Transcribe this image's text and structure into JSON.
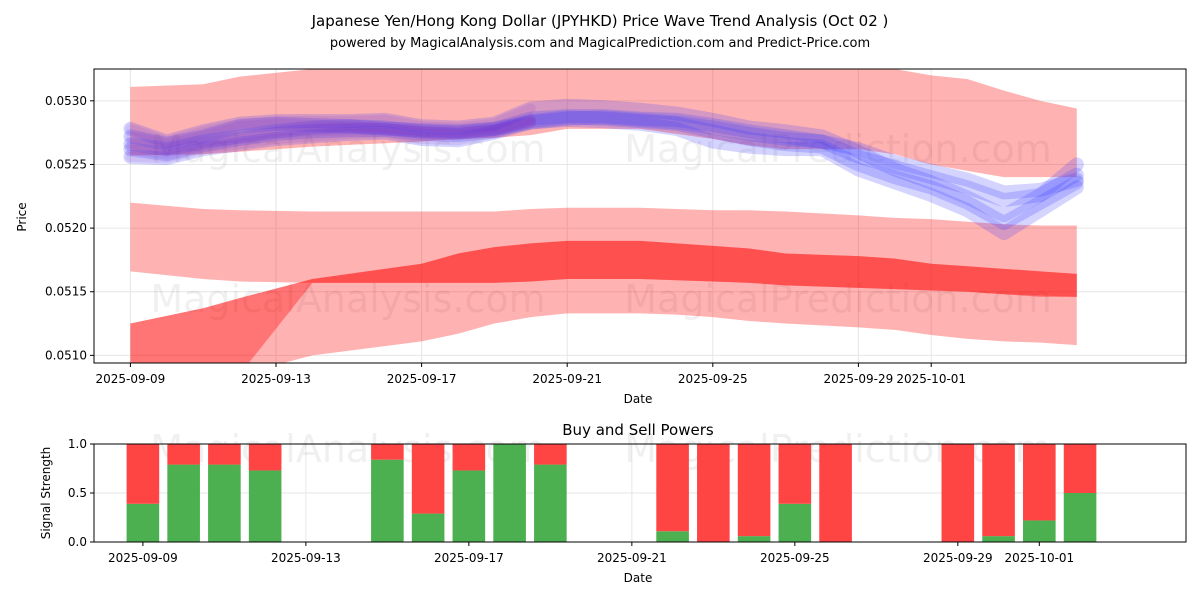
{
  "colors": {
    "band": "#ff0000",
    "wave": "#3a3aff",
    "wave_purple": "#8a2ab8",
    "buy": "#4caf50",
    "sell": "#ff4444",
    "grid": "#e6e6e6"
  },
  "watermarks": [
    "MagicalAnalysis.com",
    "MagicalPrediction.com"
  ],
  "chart_data": [
    {
      "type": "area",
      "title": "Japanese Yen/Hong Kong Dollar (JPYHKD) Price Wave Trend Analysis (Oct 02 )",
      "subtitle": "powered by MagicalAnalysis.com and MagicalPrediction.com and Predict-Price.com",
      "xlabel": "Date",
      "ylabel": "Price",
      "grid": true,
      "x_ticks": [
        "2025-09-09",
        "2025-09-13",
        "2025-09-17",
        "2025-09-21",
        "2025-09-25",
        "2025-09-29",
        "2025-10-01"
      ],
      "y_ticks": [
        "0.0510",
        "0.0515",
        "0.0520",
        "0.0525",
        "0.0530"
      ],
      "y_tick_values": [
        0.051,
        0.0515,
        0.052,
        0.0525,
        0.053
      ],
      "ylim": [
        0.05094,
        0.05325
      ],
      "x_day_range": [
        -1.0,
        29.0
      ],
      "x": [
        0,
        2,
        3,
        5,
        8,
        9,
        10,
        11,
        12,
        14,
        15,
        16,
        17,
        18,
        20,
        21,
        22,
        23,
        24,
        25,
        26
      ],
      "bands": [
        {
          "name": "upper band",
          "opacity": 0.3,
          "upper": [
            0.05311,
            0.05313,
            0.05319,
            0.05325,
            0.0533,
            0.05332,
            0.05331,
            0.0533,
            0.0533,
            0.0533,
            0.0533,
            0.0533,
            0.0533,
            0.05331,
            0.05329,
            0.05325,
            0.0532,
            0.05317,
            0.05308,
            0.053,
            0.05294
          ],
          "lower": [
            0.05257,
            0.05258,
            0.0526,
            0.05264,
            0.05268,
            0.0527,
            0.05271,
            0.05273,
            0.05278,
            0.05278,
            0.05274,
            0.0527,
            0.05265,
            0.05262,
            0.05262,
            0.05258,
            0.0525,
            0.05245,
            0.0524,
            0.0524,
            0.0524
          ]
        },
        {
          "name": "middle band",
          "opacity": 0.3,
          "upper": [
            0.0522,
            0.05215,
            0.05214,
            0.05213,
            0.05213,
            0.05213,
            0.05213,
            0.05215,
            0.05216,
            0.05216,
            0.05215,
            0.05214,
            0.05214,
            0.05213,
            0.0521,
            0.05208,
            0.05207,
            0.05205,
            0.05203,
            0.05202,
            0.05202
          ],
          "lower": [
            0.05166,
            0.0516,
            0.05158,
            0.05157,
            0.05157,
            0.05157,
            0.05157,
            0.05158,
            0.0516,
            0.0516,
            0.05159,
            0.05158,
            0.05157,
            0.05155,
            0.05153,
            0.05152,
            0.05151,
            0.0515,
            0.05148,
            0.05147,
            0.05146
          ]
        },
        {
          "name": "lower band",
          "opacity": 0.3,
          "upper": [
            0.05125,
            0.05137,
            0.05145,
            0.0516,
            0.05172,
            0.0518,
            0.05185,
            0.05188,
            0.0519,
            0.0519,
            0.05188,
            0.05186,
            0.05184,
            0.0518,
            0.05178,
            0.05176,
            0.05172,
            0.0517,
            0.05168,
            0.05166,
            0.05164
          ],
          "lower": [
            0.05065,
            0.05075,
            0.05085,
            0.051,
            0.05111,
            0.05117,
            0.05125,
            0.0513,
            0.05133,
            0.05133,
            0.05132,
            0.0513,
            0.05127,
            0.05125,
            0.05122,
            0.0512,
            0.05116,
            0.05113,
            0.05111,
            0.0511,
            0.05108
          ]
        },
        {
          "name": "dense core",
          "opacity": 0.35,
          "upper": [
            0.05125,
            0.05137,
            0.05145,
            0.0516,
            0.05172,
            0.0518,
            0.05185,
            0.05188,
            0.0519,
            0.0519,
            0.05188,
            0.05186,
            0.05184,
            0.0518,
            0.05178,
            0.05176,
            0.05172,
            0.0517,
            0.05168,
            0.05166,
            0.05164
          ],
          "lower": [
            0.05065,
            0.05075,
            0.05085,
            0.05157,
            0.05157,
            0.05157,
            0.05157,
            0.05158,
            0.0516,
            0.0516,
            0.05159,
            0.05158,
            0.05157,
            0.05155,
            0.05153,
            0.05152,
            0.05151,
            0.0515,
            0.05148,
            0.05146,
            0.05146
          ]
        }
      ],
      "waves": {
        "x": [
          0,
          1,
          2,
          3,
          4,
          5,
          6,
          7,
          8,
          9,
          10,
          11,
          12,
          13,
          14,
          15,
          16,
          17,
          18,
          19,
          20,
          21,
          22,
          23,
          24,
          25,
          26
        ],
        "series": [
          {
            "name": "wave 1",
            "values": [
              0.05266,
              0.05262,
              0.05268,
              0.05272,
              0.05276,
              0.05279,
              0.0528,
              0.05279,
              0.05276,
              0.05275,
              0.05278,
              0.05286,
              0.05288,
              0.05288,
              0.05286,
              0.05285,
              0.05281,
              0.05276,
              0.05272,
              0.05268,
              0.05262,
              0.05252,
              0.05245,
              0.05238,
              0.05228,
              0.0523,
              0.05238
            ]
          },
          {
            "name": "wave 2",
            "values": [
              0.05278,
              0.05268,
              0.05276,
              0.05282,
              0.05284,
              0.05284,
              0.05284,
              0.05285,
              0.0528,
              0.05279,
              0.05282,
              0.05294,
              0.05296,
              0.05295,
              0.05293,
              0.0529,
              0.05285,
              0.05279,
              0.05276,
              0.05272,
              0.0526,
              0.05246,
              0.05236,
              0.05224,
              0.0521,
              0.05226,
              0.0525
            ]
          },
          {
            "name": "wave 3",
            "values": [
              0.05256,
              0.05255,
              0.05262,
              0.05266,
              0.0527,
              0.05272,
              0.05274,
              0.05275,
              0.0527,
              0.05269,
              0.05275,
              0.05283,
              0.05285,
              0.05284,
              0.05282,
              0.05278,
              0.05268,
              0.05264,
              0.05262,
              0.05262,
              0.05246,
              0.05236,
              0.05226,
              0.05214,
              0.05196,
              0.05214,
              0.05232
            ]
          },
          {
            "name": "wave 4",
            "values": [
              0.05272,
              0.05266,
              0.05272,
              0.0528,
              0.05282,
              0.05281,
              0.0528,
              0.05278,
              0.05277,
              0.05276,
              0.05278,
              0.05283,
              0.05286,
              0.05287,
              0.05285,
              0.05283,
              0.05279,
              0.05274,
              0.0527,
              0.05268,
              0.05256,
              0.05248,
              0.0524,
              0.05232,
              0.05222,
              0.05226,
              0.05242
            ]
          },
          {
            "name": "wave 5",
            "values": [
              0.05262,
              0.05258,
              0.05265,
              0.0527,
              0.05274,
              0.05276,
              0.05277,
              0.05277,
              0.05274,
              0.05273,
              0.05276,
              0.05284,
              0.05287,
              0.05286,
              0.05284,
              0.05282,
              0.05276,
              0.0527,
              0.05266,
              0.05264,
              0.0525,
              0.0524,
              0.05232,
              0.0522,
              0.05204,
              0.0522,
              0.05236
            ]
          }
        ]
      }
    },
    {
      "type": "bar",
      "title": "Buy and Sell Powers",
      "xlabel": "Date",
      "ylabel": "Signal Strength",
      "ylim": [
        0,
        1
      ],
      "y_ticks": [
        "0.0",
        "0.5",
        "1.0"
      ],
      "y_tick_values": [
        0,
        0.5,
        1.0
      ],
      "x_ticks": [
        "2025-09-09",
        "2025-09-13",
        "2025-09-17",
        "2025-09-21",
        "2025-09-25",
        "2025-09-29",
        "2025-10-01"
      ],
      "x_day_range": [
        -1.2,
        25.6
      ],
      "days": [
        0,
        1,
        2,
        3,
        6,
        7,
        8,
        9,
        10,
        13,
        14,
        15,
        16,
        17,
        20,
        21,
        22,
        23
      ],
      "series": [
        {
          "name": "Buy",
          "values": [
            0.39,
            0.79,
            0.79,
            0.73,
            0.84,
            0.29,
            0.73,
            1.0,
            0.79,
            0.11,
            0.0,
            0.06,
            0.39,
            0.0,
            0.0,
            0.06,
            0.22,
            0.5
          ]
        },
        {
          "name": "Sell",
          "values": [
            0.61,
            0.21,
            0.21,
            0.27,
            0.16,
            0.71,
            0.27,
            0.0,
            0.21,
            0.89,
            1.0,
            0.94,
            0.61,
            1.0,
            1.0,
            0.94,
            0.78,
            0.5
          ]
        }
      ]
    }
  ]
}
